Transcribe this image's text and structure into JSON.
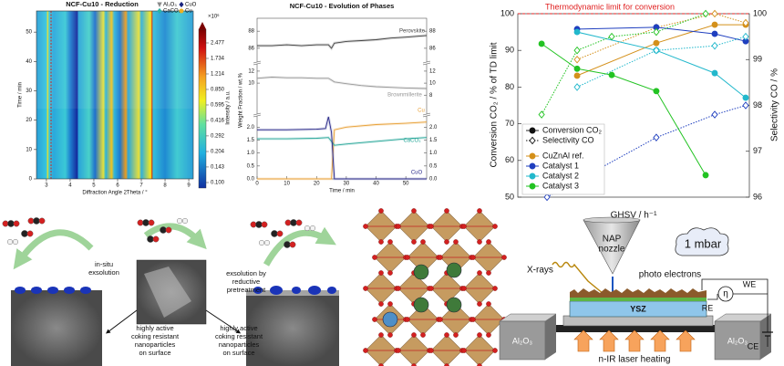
{
  "chart_data": [
    {
      "type": "heatmap",
      "title": "NCF-Cu10 - Reduction",
      "x_label": "Diffraction Angle 2Theta / °",
      "y_label": "Time / min",
      "xlim": [
        2.58,
        9.19
      ],
      "xticks": [
        3,
        4,
        5,
        6,
        7,
        8,
        9
      ],
      "ylim": [
        0,
        57.2
      ],
      "yticks": [
        0,
        10,
        20,
        30,
        40,
        50
      ],
      "legend": [
        {
          "name": "Al₂O₃",
          "color": "#8a8a8a",
          "marker": "triangle"
        },
        {
          "name": "CuO",
          "color": "#1a237e",
          "marker": "diamond"
        },
        {
          "name": "CaCO₃",
          "color": "#2bb3a3",
          "marker": "diamond"
        },
        {
          "name": "Cu",
          "color": "#f0b020",
          "marker": "circle"
        }
      ],
      "colorbar": {
        "label": "Intensity / a.u.",
        "multiplier": "×10⁶",
        "scale": "log",
        "lim": [
          0.1,
          2.477
        ],
        "ticks": [
          2.477,
          1.734,
          1.214,
          {
            "value": 0.85,
            "label": "0.850"
          },
          0.595,
          0.416,
          0.292,
          0.204,
          0.143,
          {
            "value": 0.1,
            "label": "0.100"
          }
        ]
      }
    },
    {
      "type": "line",
      "title": "NCF-Cu10 - Evolution of Phases",
      "x_label": "Time / min",
      "y_label": "Weight Fraction / wt.%",
      "xlim": [
        0,
        57
      ],
      "xticks": [
        0,
        10,
        20,
        30,
        40,
        50
      ],
      "segments": [
        {
          "ylim": [
            84.6,
            89.3
          ],
          "yticks_left": [
            86,
            88
          ],
          "yticks_right": [
            86,
            88
          ]
        },
        {
          "ylim": [
            5,
            12.9
          ],
          "yticks_left": [
            10,
            12
          ],
          "yticks_right": [
            8,
            10,
            12
          ]
        },
        {
          "ylim": [
            0,
            2.4
          ],
          "yticks_left": [
            {
              "value": 0,
              "label": "0.0"
            },
            0.5,
            {
              "value": 1,
              "label": "1.0"
            },
            1.5,
            {
              "value": 2,
              "label": "2.0"
            }
          ],
          "yticks_right": [
            {
              "value": 0,
              "label": "0.0"
            },
            0.5,
            {
              "value": 1,
              "label": "1.0"
            },
            1.5,
            {
              "value": 2,
              "label": "2.0"
            }
          ]
        }
      ],
      "series": [
        {
          "name": "Perovskite",
          "color": "#444444",
          "segment": 0,
          "x": [
            0,
            5,
            10,
            15,
            20,
            24,
            25,
            26,
            30,
            35,
            40,
            45,
            50,
            57
          ],
          "values": [
            86.3,
            86.3,
            86.4,
            86.3,
            86.4,
            86.4,
            86,
            86.6,
            86.8,
            86.9,
            87,
            87.2,
            87.3,
            87.5
          ]
        },
        {
          "name": "Brownmillerite",
          "color": "#999999",
          "segment": 1,
          "x": [
            0,
            5,
            10,
            15,
            20,
            24,
            25,
            26,
            30,
            35,
            40,
            45,
            50,
            57
          ],
          "values": [
            10.8,
            11,
            10.9,
            10.9,
            10.8,
            10.8,
            10.5,
            10.2,
            9.9,
            9.6,
            9.4,
            9.3,
            9.2,
            9.1
          ]
        },
        {
          "name": "Cu",
          "color": "#e8a23a",
          "segment": 2,
          "x": [
            0,
            25,
            26,
            30,
            40,
            50,
            57
          ],
          "values": [
            0,
            0,
            1.9,
            2,
            2.1,
            2.15,
            2.2
          ]
        },
        {
          "name": "CaCO₃",
          "color": "#2aa89a",
          "segment": 2,
          "x": [
            0,
            10,
            20,
            24,
            25,
            26,
            30,
            40,
            50,
            57
          ],
          "values": [
            1.55,
            1.55,
            1.57,
            1.6,
            1.45,
            1.3,
            1.35,
            1.45,
            1.55,
            1.6
          ]
        },
        {
          "name": "CuO",
          "color": "#2a2a8a",
          "segment": 2,
          "x": [
            0,
            10,
            20,
            23,
            24,
            25,
            26,
            57
          ],
          "values": [
            1.9,
            1.9,
            1.92,
            1.95,
            2.4,
            1.8,
            0,
            0
          ]
        }
      ]
    },
    {
      "type": "line",
      "x_label": "GHSV / h⁻¹",
      "y_label": "Conversion CO₂ / % of TD limit",
      "y2_label": "Selectivity CO / %",
      "xlim": [
        -3,
        104
      ],
      "ylim": [
        50,
        100
      ],
      "yticks": [
        50,
        60,
        70,
        80,
        90,
        100
      ],
      "y2lim": [
        96,
        100
      ],
      "y2ticks": [
        96,
        97,
        98,
        99,
        100
      ],
      "limit": {
        "value": 100,
        "label": "Thermodynamic limit for conversion",
        "color": "#e02020"
      },
      "measures": [
        {
          "name": "Conversion CO₂",
          "marker": "circle",
          "filled": true,
          "dash": "solid"
        },
        {
          "name": "Selectivity CO",
          "marker": "diamond",
          "filled": false,
          "dash": "dotted",
          "axis": "y2"
        }
      ],
      "catalysts": [
        {
          "name": "CuZnAl ref.",
          "color": "#d4901a",
          "series": [
            {
              "x": [
                24.4,
                61,
                88,
                102.3
              ],
              "values": [
                83.1,
                92,
                97,
                97
              ]
            },
            {
              "x": [
                24.4,
                61,
                88,
                102.3
              ],
              "values": [
                99,
                99.7,
                100,
                99.8
              ]
            }
          ]
        },
        {
          "name": "Catalyst 1",
          "color": "#1f3fbf",
          "series": [
            {
              "x": [
                24.4,
                61,
                88,
                102.3
              ],
              "values": [
                95.8,
                96.3,
                94.5,
                92.5
              ]
            },
            {
              "x": [
                10.5,
                61,
                88,
                102.3
              ],
              "values": [
                96,
                97.3,
                97.8,
                98
              ]
            }
          ]
        },
        {
          "name": "Catalyst 2",
          "color": "#22b8cc",
          "series": [
            {
              "x": [
                24.4,
                61,
                88,
                102.3
              ],
              "values": [
                95,
                90,
                83.8,
                77.1
              ]
            },
            {
              "x": [
                24.4,
                61,
                88,
                102.3
              ],
              "values": [
                98.4,
                99.2,
                99.3,
                99.5
              ]
            }
          ]
        },
        {
          "name": "Catalyst 3",
          "color": "#22c322",
          "series": [
            {
              "x": [
                8,
                24.4,
                40.4,
                61,
                83.8
              ],
              "values": [
                91.8,
                85,
                83.3,
                78.9,
                56
              ]
            },
            {
              "x": [
                8,
                24.4,
                40.4,
                61,
                83.8
              ],
              "values": [
                97.8,
                99.2,
                99.5,
                99.6,
                100
              ]
            }
          ]
        }
      ]
    }
  ],
  "exsolution_scheme": {
    "left_arrow_label": [
      "in-situ",
      "exsolution"
    ],
    "right_arrow_label": [
      "exsolution by",
      "reductive",
      "pretreatment"
    ],
    "left_result": [
      "highly active",
      "coking resistant",
      "nanoparticles",
      "on surface"
    ],
    "right_result": [
      "highly active",
      "coking resistant",
      "nanoparticles",
      "on surface"
    ]
  },
  "nap_xps_setup": {
    "nozzle": [
      "NAP",
      "nozzle"
    ],
    "pressure": "1 mbar",
    "xrays": "X-rays",
    "electrons": "photo electrons",
    "working_electrode": "WE",
    "reference_electrode": "RE",
    "counter_electrode": "CE",
    "overpotential": "η",
    "electrolyte": "YSZ",
    "support_left": "Al₂O₃",
    "support_right": "Al₂O₃",
    "heating": "n-IR laser heating"
  }
}
